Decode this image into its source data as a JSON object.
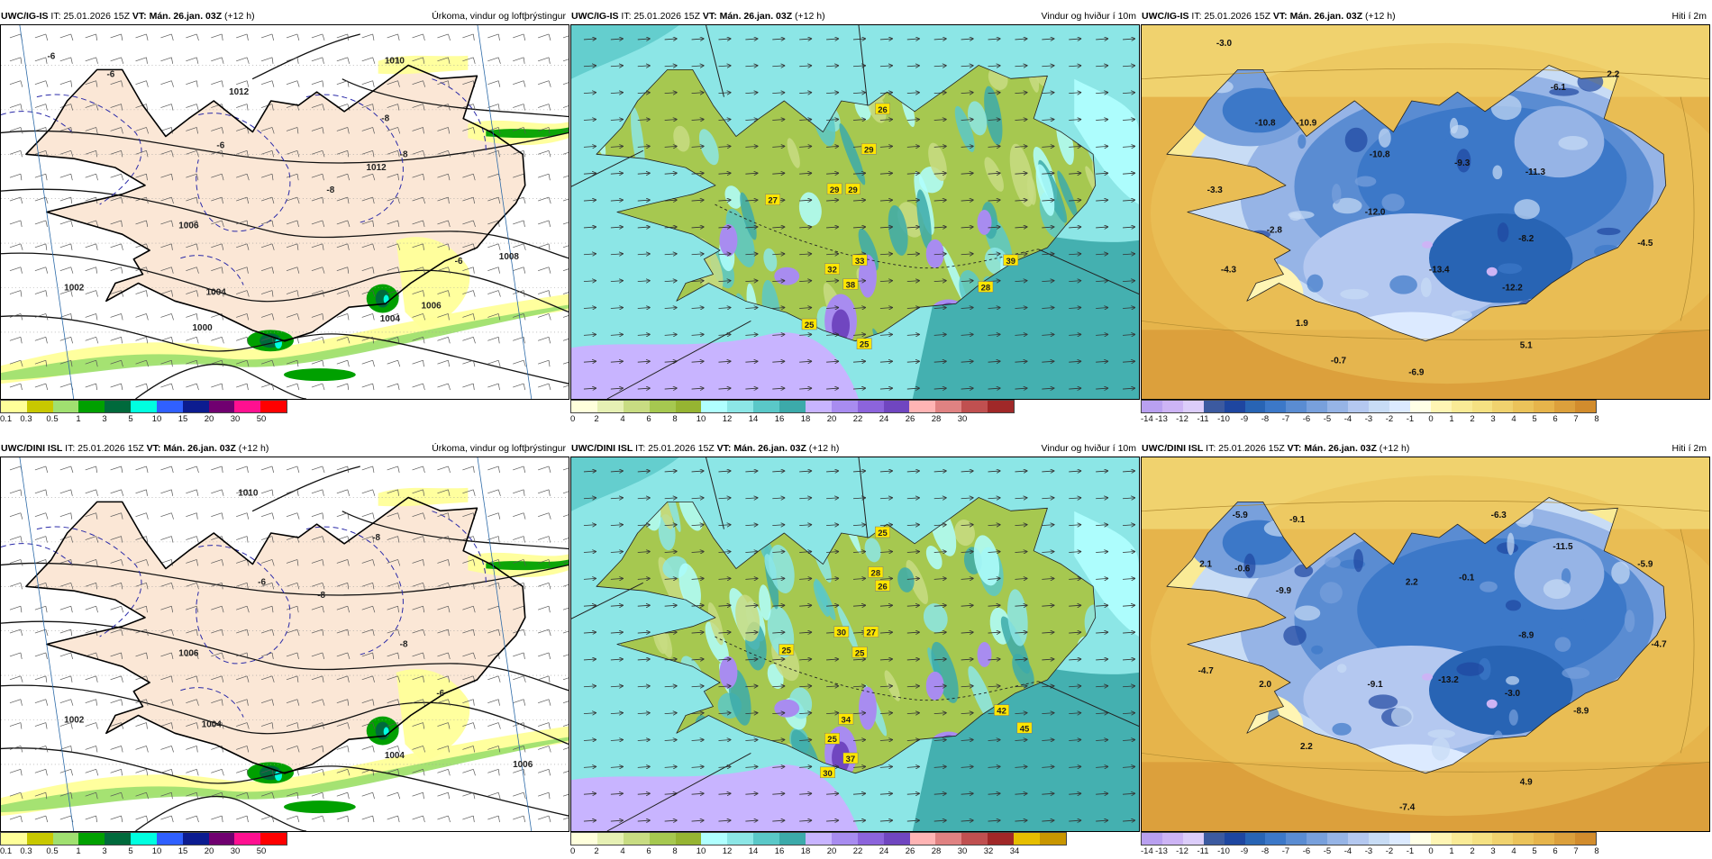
{
  "panels": [
    {
      "model": "UWC/IG-IS",
      "it_label": "IT: 25.01.2026 15Z",
      "vt_label": "VT: Mán. 26.jan. 03Z",
      "lead": "(+12 h)",
      "title": "Úrkoma, vindur og loftþrýstingur",
      "kind": "precip",
      "colorbar": {
        "colors": [
          "#ffff99",
          "#c8c800",
          "#a0e070",
          "#00a000",
          "#006a3c",
          "#00ffe0",
          "#3060ff",
          "#0c1c90",
          "#700070",
          "#ff1090",
          "#ff0000"
        ],
        "ticks": [
          "0.1",
          "0.3",
          "0.5",
          "1",
          "3",
          "5",
          "10",
          "15",
          "20",
          "30",
          "50"
        ]
      },
      "map_labels": [
        {
          "text": "-6",
          "map_x": -23.9,
          "map_y": 66.6
        },
        {
          "text": "-6",
          "map_x": -22.6,
          "map_y": 66.4
        },
        {
          "text": "1010",
          "map_x": -16.4,
          "map_y": 66.55
        },
        {
          "text": "1012",
          "map_x": -19.8,
          "map_y": 66.2
        },
        {
          "text": "1012",
          "map_x": -16.8,
          "map_y": 65.35
        },
        {
          "text": "-8",
          "map_x": -16.6,
          "map_y": 65.9
        },
        {
          "text": "-8",
          "map_x": -16.2,
          "map_y": 65.5
        },
        {
          "text": "-8",
          "map_x": -17.8,
          "map_y": 65.1
        },
        {
          "text": "-6",
          "map_x": -20.2,
          "map_y": 65.6
        },
        {
          "text": "1006",
          "map_x": -20.9,
          "map_y": 64.7
        },
        {
          "text": "1002",
          "map_x": -23.4,
          "map_y": 64.0
        },
        {
          "text": "1004",
          "map_x": -20.3,
          "map_y": 63.95
        },
        {
          "text": "1006",
          "map_x": -15.6,
          "map_y": 63.8
        },
        {
          "text": "1008",
          "map_x": -13.9,
          "map_y": 64.35
        },
        {
          "text": "1000",
          "map_x": -20.6,
          "map_y": 63.55
        },
        {
          "text": "1004",
          "map_x": -16.5,
          "map_y": 63.65
        },
        {
          "text": "-6",
          "map_x": -15.0,
          "map_y": 64.3
        }
      ]
    },
    {
      "model": "UWC/IG-IS",
      "it_label": "IT: 25.01.2026 15Z",
      "vt_label": "VT: Mán. 26.jan. 03Z",
      "lead": "(+12 h)",
      "title": "Vindur og hviður í 10m",
      "kind": "wind",
      "colorbar": {
        "colors": [
          "#ffffdc",
          "#e6f0b4",
          "#c8dc82",
          "#a6c850",
          "#96b432",
          "#b0ffff",
          "#8ce6e6",
          "#5ac8c8",
          "#3caaaa",
          "#c8b4ff",
          "#a88cf0",
          "#8c64dc",
          "#7046c0",
          "#ffb4b4",
          "#e08282",
          "#c05050",
          "#a02828"
        ],
        "ticks": [
          "0",
          "2",
          "4",
          "6",
          "8",
          "10",
          "12",
          "14",
          "16",
          "18",
          "20",
          "22",
          "24",
          "26",
          "28",
          "30"
        ]
      },
      "gust_labels": [
        {
          "text": "26",
          "map_x": -18.2,
          "map_y": 66.0
        },
        {
          "text": "29",
          "map_x": -18.5,
          "map_y": 65.55
        },
        {
          "text": "29",
          "map_x": -18.85,
          "map_y": 65.1
        },
        {
          "text": "29",
          "map_x": -19.25,
          "map_y": 65.1
        },
        {
          "text": "27",
          "map_x": -20.6,
          "map_y": 64.98
        },
        {
          "text": "33",
          "map_x": -18.7,
          "map_y": 64.3
        },
        {
          "text": "32",
          "map_x": -19.3,
          "map_y": 64.2
        },
        {
          "text": "38",
          "map_x": -18.9,
          "map_y": 64.03
        },
        {
          "text": "39",
          "map_x": -15.4,
          "map_y": 64.3
        },
        {
          "text": "28",
          "map_x": -15.95,
          "map_y": 64.0
        },
        {
          "text": "25",
          "map_x": -19.8,
          "map_y": 63.58
        },
        {
          "text": "25",
          "map_x": -18.6,
          "map_y": 63.36
        }
      ]
    },
    {
      "model": "UWC/IG-IS",
      "it_label": "IT: 25.01.2026 15Z",
      "vt_label": "VT: Mán. 26.jan. 03Z",
      "lead": "(+12 h)",
      "title": "Hiti í 2m",
      "kind": "temp",
      "colorbar": {
        "colors": [
          "#b9a0f0",
          "#cdb4f5",
          "#dccdfa",
          "#3c5aa0",
          "#1e46a0",
          "#2864b4",
          "#3c78c8",
          "#5a8cd2",
          "#78a0dc",
          "#96b4e6",
          "#b4c8f0",
          "#c8dcf5",
          "#dceaff",
          "#ffffe6",
          "#fff5b4",
          "#faeb96",
          "#f5e182",
          "#f0d26e",
          "#ebc35a",
          "#e6b44b",
          "#dca03c",
          "#d28c2d"
        ],
        "ticks": [
          "-14",
          "-13",
          "-12",
          "-11",
          "-10",
          "-9",
          "-8",
          "-7",
          "-6",
          "-5",
          "-4",
          "-3",
          "-2",
          "-1",
          "0",
          "1",
          "2",
          "3",
          "4",
          "5",
          "6",
          "7",
          "8"
        ]
      },
      "temp_labels": [
        {
          "text": "-3.0",
          "map_x": -23.2,
          "map_y": 66.75
        },
        {
          "text": "2.2",
          "map_x": -14.7,
          "map_y": 66.4
        },
        {
          "text": "-6.1",
          "map_x": -15.9,
          "map_y": 66.25
        },
        {
          "text": "-10.8",
          "map_x": -22.3,
          "map_y": 65.85
        },
        {
          "text": "-10.9",
          "map_x": -21.4,
          "map_y": 65.85
        },
        {
          "text": "-10.8",
          "map_x": -19.8,
          "map_y": 65.5
        },
        {
          "text": "-9.3",
          "map_x": -18.0,
          "map_y": 65.4
        },
        {
          "text": "-11.3",
          "map_x": -16.4,
          "map_y": 65.3
        },
        {
          "text": "-3.3",
          "map_x": -23.4,
          "map_y": 65.1
        },
        {
          "text": "-12.0",
          "map_x": -19.9,
          "map_y": 64.85
        },
        {
          "text": "-2.8",
          "map_x": -22.1,
          "map_y": 64.65
        },
        {
          "text": "-8.2",
          "map_x": -16.6,
          "map_y": 64.55
        },
        {
          "text": "-4.5",
          "map_x": -14.0,
          "map_y": 64.5
        },
        {
          "text": "-4.3",
          "map_x": -23.1,
          "map_y": 64.2
        },
        {
          "text": "-13.4",
          "map_x": -18.5,
          "map_y": 64.2
        },
        {
          "text": "-12.2",
          "map_x": -16.9,
          "map_y": 64.0
        },
        {
          "text": "1.9",
          "map_x": -21.5,
          "map_y": 63.6
        },
        {
          "text": "5.1",
          "map_x": -16.6,
          "map_y": 63.35
        },
        {
          "text": "-0.7",
          "map_x": -20.7,
          "map_y": 63.18
        },
        {
          "text": "-6.9",
          "map_x": -19.0,
          "map_y": 63.05
        }
      ]
    },
    {
      "model": "UWC/DINI ISL",
      "it_label": "IT: 25.01.2026 15Z",
      "vt_label": "VT: Mán. 26.jan. 03Z",
      "lead": "(+12 h)",
      "title": "Úrkoma, vindur og loftþrýstingur",
      "kind": "precip",
      "colorbar": {
        "colors": [
          "#ffff99",
          "#c8c800",
          "#a0e070",
          "#00a000",
          "#006a3c",
          "#00ffe0",
          "#3060ff",
          "#0c1c90",
          "#700070",
          "#ff1090",
          "#ff0000"
        ],
        "ticks": [
          "0.1",
          "0.3",
          "0.5",
          "1",
          "3",
          "5",
          "10",
          "15",
          "20",
          "30",
          "50"
        ]
      },
      "map_labels": [
        {
          "text": "1010",
          "map_x": -19.6,
          "map_y": 66.55
        },
        {
          "text": "-8",
          "map_x": -16.8,
          "map_y": 66.05
        },
        {
          "text": "-8",
          "map_x": -18.0,
          "map_y": 65.4
        },
        {
          "text": "-6",
          "map_x": -19.3,
          "map_y": 65.55
        },
        {
          "text": "1006",
          "map_x": -20.9,
          "map_y": 64.75
        },
        {
          "text": "-8",
          "map_x": -16.2,
          "map_y": 64.85
        },
        {
          "text": "1002",
          "map_x": -23.4,
          "map_y": 64.0
        },
        {
          "text": "1004",
          "map_x": -20.4,
          "map_y": 63.95
        },
        {
          "text": "1004",
          "map_x": -16.4,
          "map_y": 63.6
        },
        {
          "text": "1006",
          "map_x": -13.6,
          "map_y": 63.5
        },
        {
          "text": "-6",
          "map_x": -15.4,
          "map_y": 64.3
        }
      ]
    },
    {
      "model": "UWC/DINI ISL",
      "it_label": "IT: 25.01.2026 15Z",
      "vt_label": "VT: Mán. 26.jan. 03Z",
      "lead": "(+12 h)",
      "title": "Vindur og hviður í 10m",
      "kind": "wind",
      "colorbar": {
        "colors": [
          "#ffffdc",
          "#e6f0b4",
          "#c8dc82",
          "#a6c850",
          "#96b432",
          "#b0ffff",
          "#8ce6e6",
          "#5ac8c8",
          "#3caaaa",
          "#c8b4ff",
          "#a88cf0",
          "#8c64dc",
          "#7046c0",
          "#ffb4b4",
          "#e08282",
          "#c05050",
          "#a02828",
          "#e6be00",
          "#c89600"
        ],
        "ticks": [
          "0",
          "2",
          "4",
          "6",
          "8",
          "10",
          "12",
          "14",
          "16",
          "18",
          "20",
          "22",
          "24",
          "26",
          "28",
          "30",
          "32",
          "34"
        ]
      },
      "gust_labels": [
        {
          "text": "25",
          "map_x": -18.2,
          "map_y": 66.1
        },
        {
          "text": "28",
          "map_x": -18.35,
          "map_y": 65.65
        },
        {
          "text": "26",
          "map_x": -18.2,
          "map_y": 65.5
        },
        {
          "text": "30",
          "map_x": -19.1,
          "map_y": 64.98
        },
        {
          "text": "27",
          "map_x": -18.45,
          "map_y": 64.98
        },
        {
          "text": "25",
          "map_x": -20.3,
          "map_y": 64.78
        },
        {
          "text": "25",
          "map_x": -18.7,
          "map_y": 64.75
        },
        {
          "text": "34",
          "map_x": -19.0,
          "map_y": 64.0
        },
        {
          "text": "42",
          "map_x": -15.6,
          "map_y": 64.1
        },
        {
          "text": "25",
          "map_x": -19.3,
          "map_y": 63.78
        },
        {
          "text": "37",
          "map_x": -18.9,
          "map_y": 63.56
        },
        {
          "text": "30",
          "map_x": -19.4,
          "map_y": 63.4
        },
        {
          "text": "45",
          "map_x": -15.1,
          "map_y": 63.9
        }
      ]
    },
    {
      "model": "UWC/DINI ISL",
      "it_label": "IT: 25.01.2026 15Z",
      "vt_label": "VT: Mán. 26.jan. 03Z",
      "lead": "(+12 h)",
      "title": "Hiti í 2m",
      "kind": "temp",
      "colorbar": {
        "colors": [
          "#b9a0f0",
          "#cdb4f5",
          "#dccdfa",
          "#3c5aa0",
          "#1e46a0",
          "#2864b4",
          "#3c78c8",
          "#5a8cd2",
          "#78a0dc",
          "#96b4e6",
          "#b4c8f0",
          "#c8dcf5",
          "#dceaff",
          "#ffffe6",
          "#fff5b4",
          "#faeb96",
          "#f5e182",
          "#f0d26e",
          "#ebc35a",
          "#e6b44b",
          "#dca03c",
          "#d28c2d"
        ],
        "ticks": [
          "-14",
          "-13",
          "-12",
          "-11",
          "-10",
          "-9",
          "-8",
          "-7",
          "-6",
          "-5",
          "-4",
          "-3",
          "-2",
          "-1",
          "0",
          "1",
          "2",
          "3",
          "4",
          "5",
          "6",
          "7",
          "8"
        ]
      },
      "temp_labels": [
        {
          "text": "-5.9",
          "map_x": -22.85,
          "map_y": 66.3
        },
        {
          "text": "-9.1",
          "map_x": -21.6,
          "map_y": 66.25
        },
        {
          "text": "-6.3",
          "map_x": -17.2,
          "map_y": 66.3
        },
        {
          "text": "-11.5",
          "map_x": -15.8,
          "map_y": 65.95
        },
        {
          "text": "-5.9",
          "map_x": -14.0,
          "map_y": 65.75
        },
        {
          "text": "2.1",
          "map_x": -23.6,
          "map_y": 65.75
        },
        {
          "text": "-0.6",
          "map_x": -22.8,
          "map_y": 65.7
        },
        {
          "text": "2.2",
          "map_x": -19.1,
          "map_y": 65.55
        },
        {
          "text": "-0.1",
          "map_x": -17.9,
          "map_y": 65.6
        },
        {
          "text": "-9.9",
          "map_x": -21.9,
          "map_y": 65.45
        },
        {
          "text": "-8.9",
          "map_x": -16.6,
          "map_y": 64.95
        },
        {
          "text": "-4.7",
          "map_x": -13.7,
          "map_y": 64.85
        },
        {
          "text": "-4.7",
          "map_x": -23.6,
          "map_y": 64.55
        },
        {
          "text": "2.0",
          "map_x": -22.3,
          "map_y": 64.4
        },
        {
          "text": "-9.1",
          "map_x": -19.9,
          "map_y": 64.4
        },
        {
          "text": "-13.2",
          "map_x": -18.3,
          "map_y": 64.45
        },
        {
          "text": "-3.0",
          "map_x": -16.9,
          "map_y": 64.3
        },
        {
          "text": "-8.9",
          "map_x": -15.4,
          "map_y": 64.1
        },
        {
          "text": "2.2",
          "map_x": -21.4,
          "map_y": 63.7
        },
        {
          "text": "4.9",
          "map_x": -16.6,
          "map_y": 63.3
        },
        {
          "text": "-7.4",
          "map_x": -19.2,
          "map_y": 63.02
        }
      ]
    }
  ]
}
